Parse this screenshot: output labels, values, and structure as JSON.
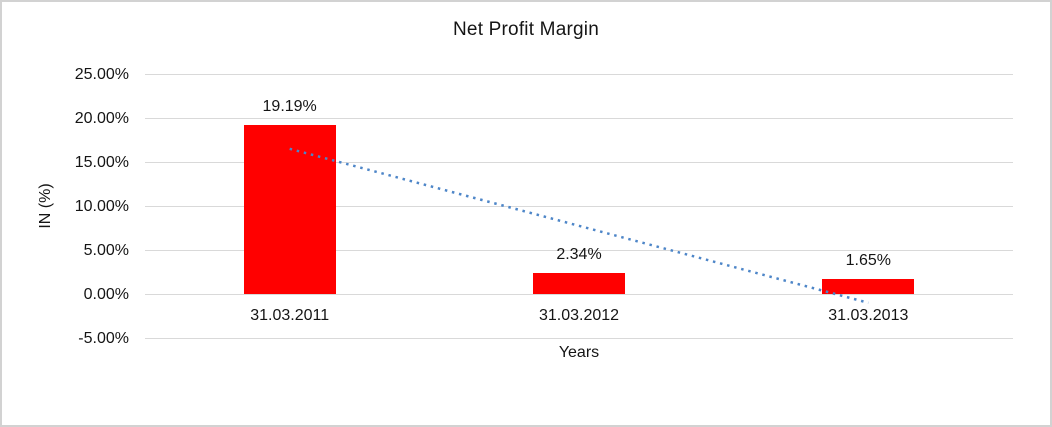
{
  "frame": {
    "background": "#ffffff",
    "border_color": "#d2d2d2"
  },
  "chart_data": {
    "type": "bar",
    "title": "Net Profit Margin",
    "xlabel": "Years",
    "ylabel": "IN (%)",
    "categories": [
      "31.03.2011",
      "31.03.2012",
      "31.03.2013"
    ],
    "values": [
      19.19,
      2.34,
      1.65
    ],
    "data_labels": [
      "19.19%",
      "2.34%",
      "1.65%"
    ],
    "ylim": [
      -5,
      25
    ],
    "ytick_step": 5,
    "ytick_labels": [
      "25.00%",
      "20.00%",
      "15.00%",
      "10.00%",
      "5.00%",
      "0.00%",
      "-5.00%"
    ],
    "grid": true,
    "gridline_color": "#d9d9d9",
    "bar_color": "#ff0000",
    "text_color": "#151515",
    "legend": "none",
    "trendline": {
      "type": "linear",
      "style": "dotted",
      "color": "#4e86c8",
      "start_value": 16.5,
      "end_value": -1.0
    }
  }
}
